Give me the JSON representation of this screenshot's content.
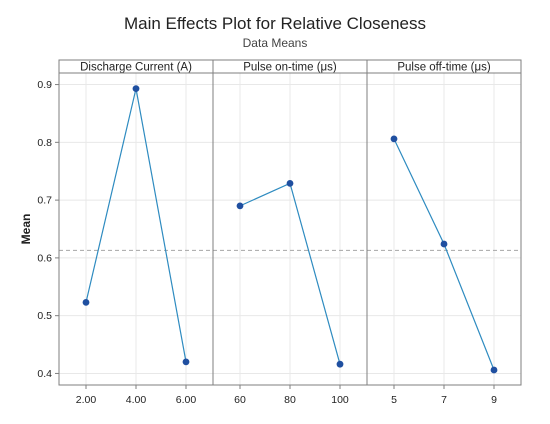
{
  "chart_data": {
    "type": "line",
    "title": "Main Effects Plot for Relative Closeness",
    "subtitle": "Data Means",
    "ylabel": "Mean",
    "ylim": [
      0.38,
      0.92
    ],
    "yticks": [
      0.4,
      0.5,
      0.6,
      0.7,
      0.8,
      0.9
    ],
    "ytick_labels": [
      "0.4",
      "0.5",
      "0.6",
      "0.7",
      "0.8",
      "0.9"
    ],
    "overall_mean": 0.613,
    "grid": true,
    "line_color": "#2e8bc0",
    "marker_color": "#1f4fa0",
    "reference_line_color": "#a6a6a6",
    "panels": [
      {
        "label": "Discharge Current (A)",
        "categories": [
          "2.00",
          "4.00",
          "6.00"
        ],
        "values": [
          0.523,
          0.893,
          0.42
        ]
      },
      {
        "label": "Pulse on-time (μs)",
        "categories": [
          "60",
          "80",
          "100"
        ],
        "values": [
          0.69,
          0.729,
          0.416
        ]
      },
      {
        "label": "Pulse off-time (μs)",
        "categories": [
          "5",
          "7",
          "9"
        ],
        "values": [
          0.806,
          0.624,
          0.406
        ]
      }
    ]
  }
}
